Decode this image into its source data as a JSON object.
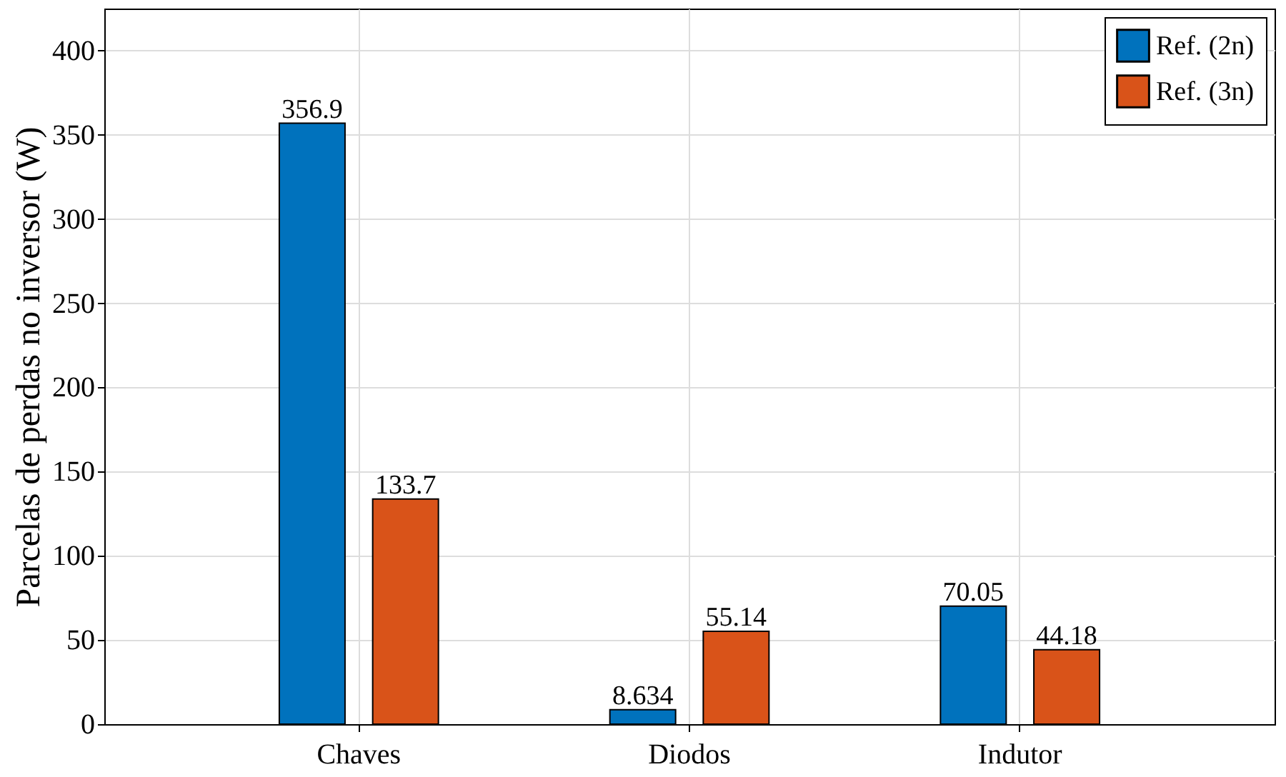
{
  "chart_data": {
    "type": "bar",
    "ylabel": "Parcelas de perdas no inversor (W)",
    "categories": [
      "Chaves",
      "Diodos",
      "Indutor"
    ],
    "series": [
      {
        "name": "Ref. (2n)",
        "color": "#0072bd",
        "values": [
          356.9,
          8.634,
          70.05
        ]
      },
      {
        "name": "Ref. (3n)",
        "color": "#d95319",
        "values": [
          133.7,
          55.14,
          44.18
        ]
      }
    ],
    "ylim": [
      0,
      425
    ],
    "yticks": [
      0,
      50,
      100,
      150,
      200,
      250,
      300,
      350,
      400
    ],
    "grid": true,
    "legend": "top right",
    "data_labels": true
  }
}
